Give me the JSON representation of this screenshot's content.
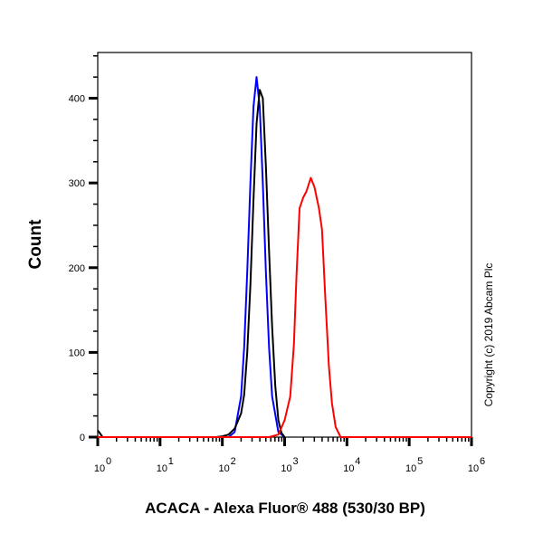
{
  "chart_data": {
    "type": "line",
    "title": "",
    "xlabel": "ACACA - Alexa Fluor® 488 (530/30 BP)",
    "ylabel": "Count",
    "x_scale": "log",
    "xlim": [
      1,
      1000000
    ],
    "ylim": [
      0,
      454
    ],
    "x_ticks": [
      1,
      10,
      100,
      1000,
      10000,
      100000,
      1000000
    ],
    "x_tick_labels": [
      {
        "base": "10",
        "exp": "0"
      },
      {
        "base": "10",
        "exp": "1"
      },
      {
        "base": "10",
        "exp": "2"
      },
      {
        "base": "10",
        "exp": "3"
      },
      {
        "base": "10",
        "exp": "4"
      },
      {
        "base": "10",
        "exp": "5"
      },
      {
        "base": "10",
        "exp": "6"
      }
    ],
    "y_ticks": [
      0,
      100,
      200,
      300,
      400
    ],
    "y_tick_labels": [
      "0",
      "100",
      "200",
      "300",
      "400"
    ],
    "grid": false,
    "annotation": "Copyright (c) 2019 Abcam Plc",
    "series": [
      {
        "color": "#0000ff",
        "points": [
          [
            126,
            0
          ],
          [
            158,
            6
          ],
          [
            200,
            48
          ],
          [
            224,
            106
          ],
          [
            251,
            195
          ],
          [
            282,
            300
          ],
          [
            316,
            390
          ],
          [
            355,
            425
          ],
          [
            398,
            390
          ],
          [
            447,
            300
          ],
          [
            501,
            195
          ],
          [
            562,
            106
          ],
          [
            631,
            48
          ],
          [
            794,
            6
          ],
          [
            1000,
            0
          ]
        ]
      },
      {
        "color": "#000000",
        "points": [
          [
            1,
            8
          ],
          [
            1.2,
            0
          ],
          [
            79,
            0
          ],
          [
            100,
            1
          ],
          [
            126,
            3
          ],
          [
            158,
            10
          ],
          [
            200,
            28
          ],
          [
            224,
            50
          ],
          [
            251,
            100
          ],
          [
            282,
            180
          ],
          [
            316,
            280
          ],
          [
            355,
            370
          ],
          [
            398,
            410
          ],
          [
            447,
            400
          ],
          [
            501,
            320
          ],
          [
            562,
            220
          ],
          [
            631,
            130
          ],
          [
            708,
            60
          ],
          [
            794,
            20
          ],
          [
            891,
            5
          ],
          [
            1000,
            0
          ]
        ]
      },
      {
        "color": "#ff0000",
        "points": [
          [
            1,
            0
          ],
          [
            562,
            0
          ],
          [
            794,
            3
          ],
          [
            1000,
            20
          ],
          [
            1230,
            48
          ],
          [
            1413,
            110
          ],
          [
            1549,
            190
          ],
          [
            1738,
            270
          ],
          [
            1995,
            283
          ],
          [
            2239,
            290
          ],
          [
            2630,
            306
          ],
          [
            3020,
            295
          ],
          [
            3548,
            270
          ],
          [
            3981,
            245
          ],
          [
            4467,
            170
          ],
          [
            5129,
            84
          ],
          [
            5754,
            40
          ],
          [
            6607,
            12
          ],
          [
            7943,
            0
          ],
          [
            1000000,
            0
          ]
        ]
      }
    ]
  }
}
